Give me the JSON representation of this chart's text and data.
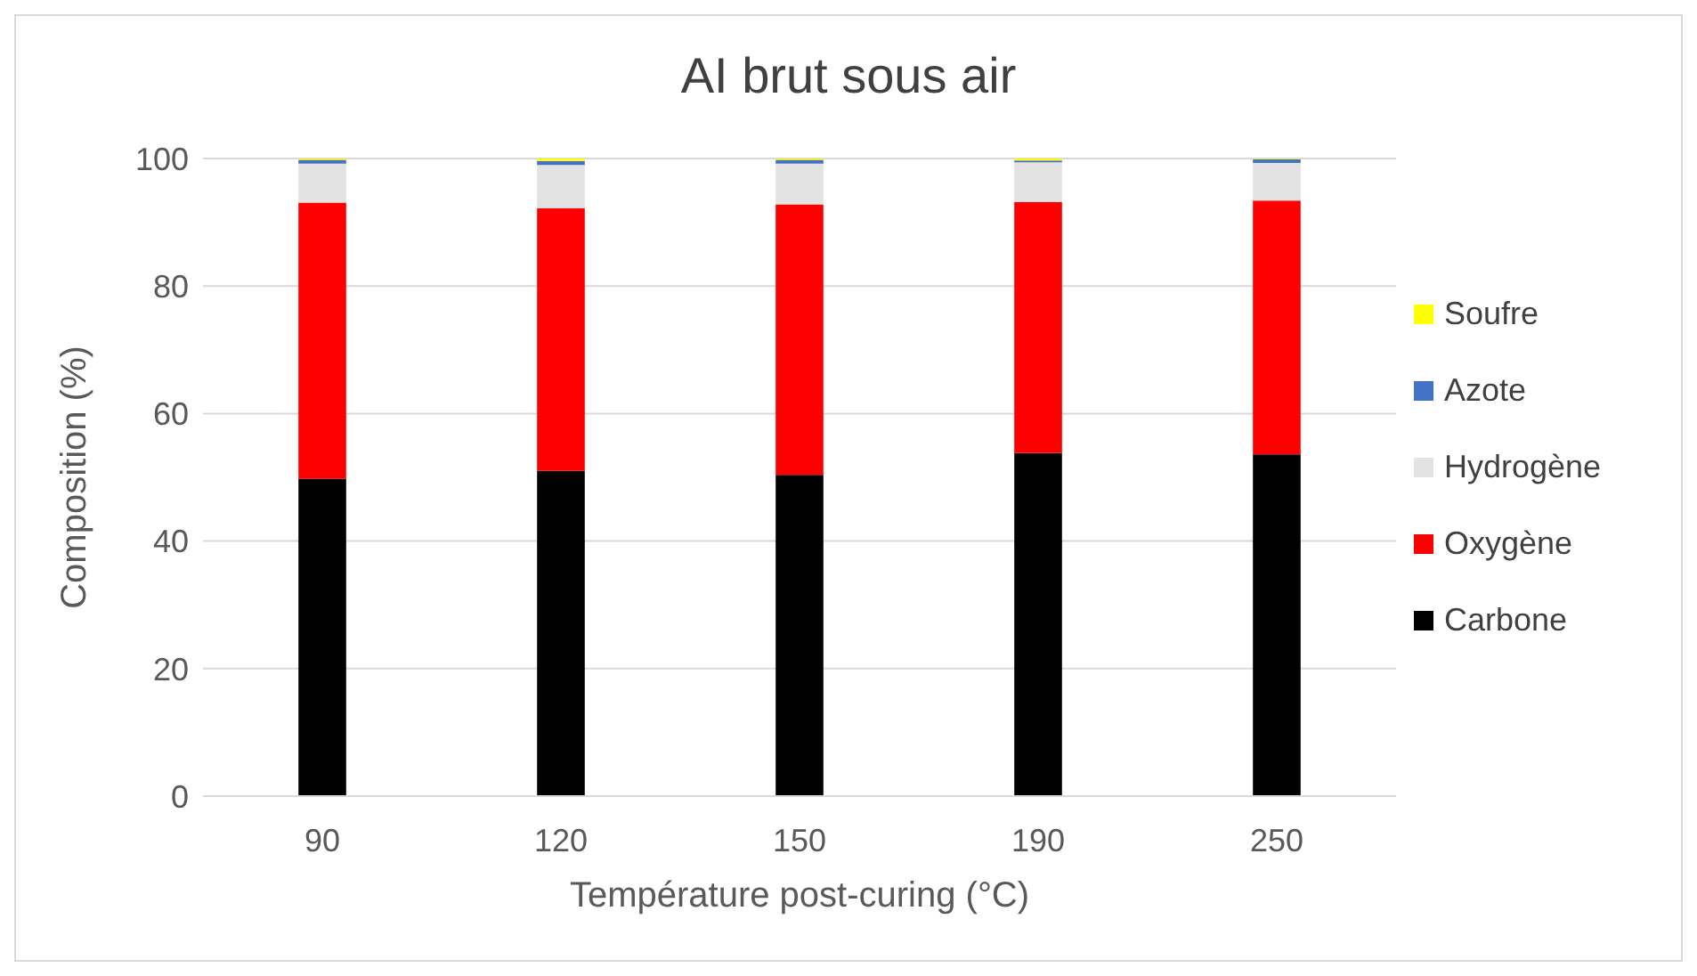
{
  "chart_data": {
    "type": "bar",
    "title": "AI brut sous air",
    "xlabel": "Température post-curing (°C)",
    "ylabel": "Composition (%)",
    "categories": [
      "90",
      "120",
      "150",
      "190",
      "250"
    ],
    "stacked": true,
    "series": [
      {
        "name": "Carbone",
        "color": "#000000",
        "values": [
          49.8,
          51,
          50.4,
          53.8,
          53.6
        ]
      },
      {
        "name": "Oxygène",
        "color": "#ff0000",
        "values": [
          43.3,
          41.2,
          42.4,
          39.4,
          39.8
        ]
      },
      {
        "name": "Hydrogène",
        "color": "#e3e3e3",
        "values": [
          6.1,
          6.8,
          6.4,
          6.2,
          5.9
        ]
      },
      {
        "name": "Azote",
        "color": "#4472c4",
        "values": [
          0.6,
          0.6,
          0.6,
          0.3,
          0.6
        ]
      },
      {
        "name": "Soufre",
        "color": "#ffff00",
        "values": [
          0.2,
          0.4,
          0.2,
          0.3,
          0.1
        ]
      }
    ],
    "ylim": [
      0,
      100
    ],
    "yticks": [
      0,
      20,
      40,
      60,
      80,
      100
    ],
    "grid": "y",
    "legend": "right"
  }
}
